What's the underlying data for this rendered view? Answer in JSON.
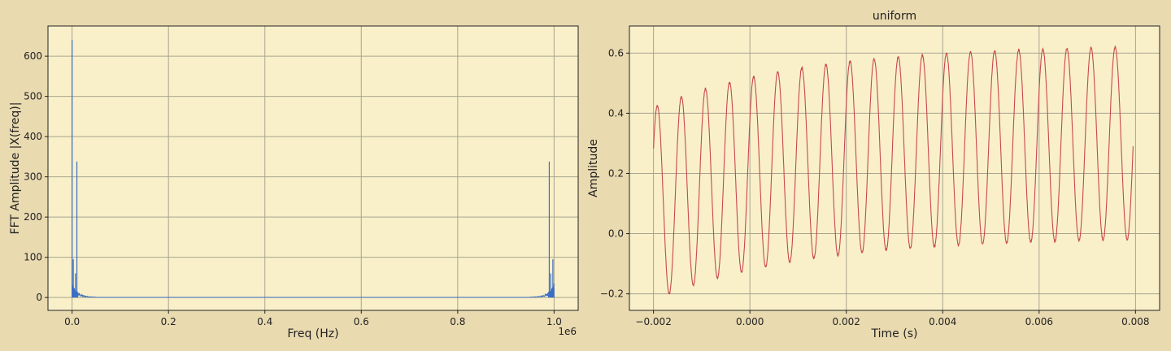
{
  "figure": {
    "background": "#e9dab0",
    "axes_background": "#f9f0c9",
    "grid_color": "#a9a48f"
  },
  "chart_data": [
    {
      "type": "line",
      "title": "",
      "xlabel": "Freq (Hz)",
      "ylabel": "FFT Amplitude |X(freq)|",
      "x_offset_label": "1e6",
      "xlim": [
        -0.05,
        1.05
      ],
      "ylim": [
        -32,
        675
      ],
      "xticks": [
        0.0,
        0.2,
        0.4,
        0.6,
        0.8,
        1.0
      ],
      "xtick_labels": [
        "0.0",
        "0.2",
        "0.4",
        "0.6",
        "0.8",
        "1.0"
      ],
      "yticks": [
        0,
        100,
        200,
        300,
        400,
        500,
        600
      ],
      "ytick_labels": [
        "0",
        "100",
        "200",
        "300",
        "400",
        "500",
        "600"
      ],
      "grid": true,
      "series": [
        {
          "color": "#3a6fc4",
          "x_scale": "1e6 Hz",
          "peaks": [
            {
              "x": 0.0,
              "y": 640
            },
            {
              "x": 0.0025,
              "y": 95
            },
            {
              "x": 0.007,
              "y": 60
            },
            {
              "x": 0.01,
              "y": 338
            },
            {
              "x": 0.99,
              "y": 338
            },
            {
              "x": 0.993,
              "y": 60
            },
            {
              "x": 0.9975,
              "y": 95
            }
          ],
          "baseline_noise": 25,
          "decay_width": 0.012
        }
      ]
    },
    {
      "type": "line",
      "title": "uniform",
      "xlabel": "Time (s)",
      "ylabel": "Amplitude",
      "xlim": [
        -0.0025,
        0.0085
      ],
      "ylim": [
        -0.255,
        0.69
      ],
      "xticks": [
        -0.002,
        0.0,
        0.002,
        0.004,
        0.006,
        0.008
      ],
      "xtick_labels": [
        "−0.002",
        "0.000",
        "0.002",
        "0.004",
        "0.006",
        "0.008"
      ],
      "yticks": [
        -0.2,
        0.0,
        0.2,
        0.4,
        0.6
      ],
      "ytick_labels": [
        "−0.2",
        "0.0",
        "0.2",
        "0.4",
        "0.6"
      ],
      "grid": true,
      "series": [
        {
          "color": "#c8474f",
          "x_start": -0.002,
          "x_end": 0.00795,
          "frequency_hz": 2000,
          "amplitude": 0.32,
          "offset_start": 0.1,
          "offset_end": 0.3,
          "noise": 0.006
        }
      ]
    }
  ]
}
